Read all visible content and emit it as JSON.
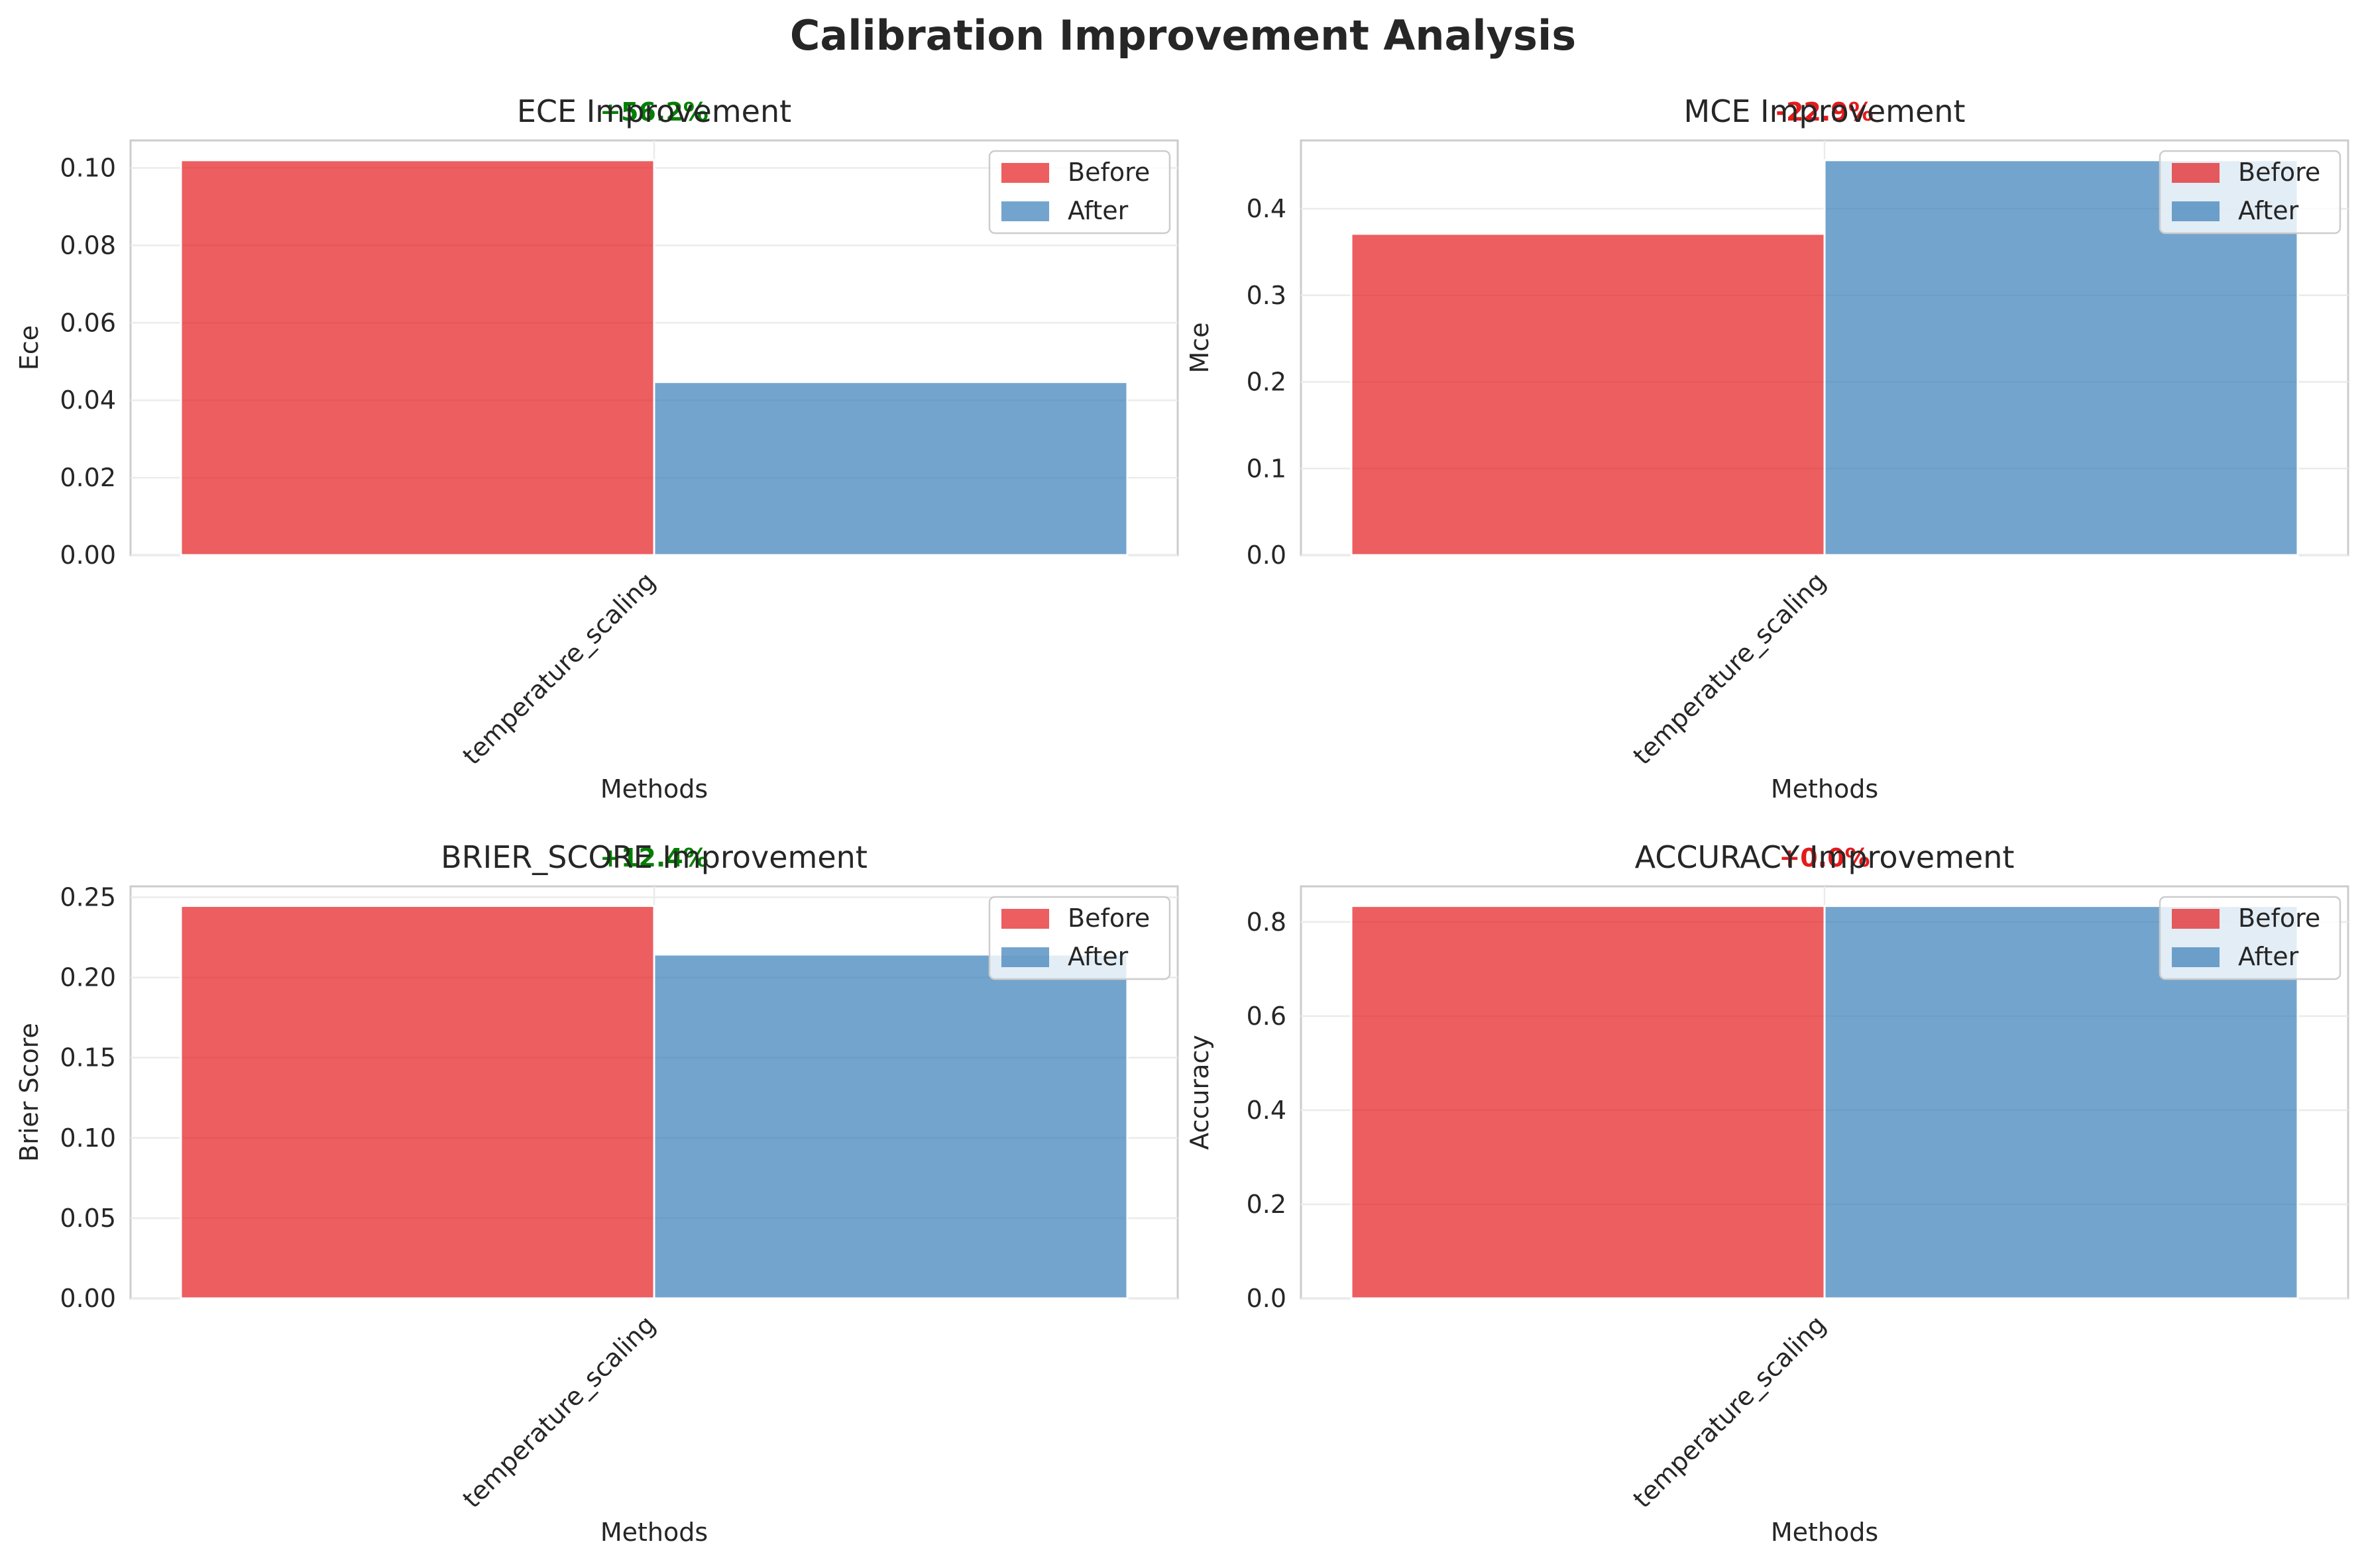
{
  "figure": {
    "title": "Calibration Improvement Analysis"
  },
  "colors": {
    "before": "#e41a1c",
    "after": "#377eb8",
    "improve_positive": "#008000",
    "improve_negative": "#e41a1c",
    "grid": "#ebebeb",
    "spine": "#cccccc",
    "text": "#262626"
  },
  "legend": {
    "before_label": "Before",
    "after_label": "After",
    "placement": "upper right"
  },
  "chart_data": [
    {
      "type": "bar",
      "title": "ECE Improvement",
      "xlabel": "Methods",
      "ylabel": "Ece",
      "categories": [
        "temperature_scaling"
      ],
      "series": [
        {
          "name": "Before",
          "values": [
            0.102
          ]
        },
        {
          "name": "After",
          "values": [
            0.0447
          ]
        }
      ],
      "ylim": [
        0,
        0.1071
      ],
      "yticks": [
        "0.00",
        "0.02",
        "0.04",
        "0.06",
        "0.08",
        "0.10"
      ],
      "ytick_values": [
        0,
        0.02,
        0.04,
        0.06,
        0.08,
        0.1
      ],
      "improvement_label": "+56.2%",
      "improvement_sign": "positive",
      "grid": true
    },
    {
      "type": "bar",
      "title": "MCE Improvement",
      "xlabel": "Methods",
      "ylabel": "Mce",
      "categories": [
        "temperature_scaling"
      ],
      "series": [
        {
          "name": "Before",
          "values": [
            0.371
          ]
        },
        {
          "name": "After",
          "values": [
            0.456
          ]
        }
      ],
      "ylim": [
        0,
        0.4788
      ],
      "yticks": [
        "0.0",
        "0.1",
        "0.2",
        "0.3",
        "0.4"
      ],
      "ytick_values": [
        0,
        0.1,
        0.2,
        0.3,
        0.4
      ],
      "improvement_label": "-22.9%",
      "improvement_sign": "negative",
      "grid": true
    },
    {
      "type": "bar",
      "title": "BRIER_SCORE Improvement",
      "xlabel": "Methods",
      "ylabel": "Brier Score",
      "categories": [
        "temperature_scaling"
      ],
      "series": [
        {
          "name": "Before",
          "values": [
            0.2446
          ]
        },
        {
          "name": "After",
          "values": [
            0.2143
          ]
        }
      ],
      "ylim": [
        0,
        0.2568
      ],
      "yticks": [
        "0.00",
        "0.05",
        "0.10",
        "0.15",
        "0.20",
        "0.25"
      ],
      "ytick_values": [
        0,
        0.05,
        0.1,
        0.15,
        0.2,
        0.25
      ],
      "improvement_label": "+12.4%",
      "improvement_sign": "positive",
      "grid": true
    },
    {
      "type": "bar",
      "title": "ACCURACY Improvement",
      "xlabel": "Methods",
      "ylabel": "Accuracy",
      "categories": [
        "temperature_scaling"
      ],
      "series": [
        {
          "name": "Before",
          "values": [
            0.834
          ]
        },
        {
          "name": "After",
          "values": [
            0.834
          ]
        }
      ],
      "ylim": [
        0,
        0.8757
      ],
      "yticks": [
        "0.0",
        "0.2",
        "0.4",
        "0.6",
        "0.8"
      ],
      "ytick_values": [
        0,
        0.2,
        0.4,
        0.6,
        0.8
      ],
      "improvement_label": "+0.0%",
      "improvement_sign": "negative",
      "grid": true
    }
  ]
}
